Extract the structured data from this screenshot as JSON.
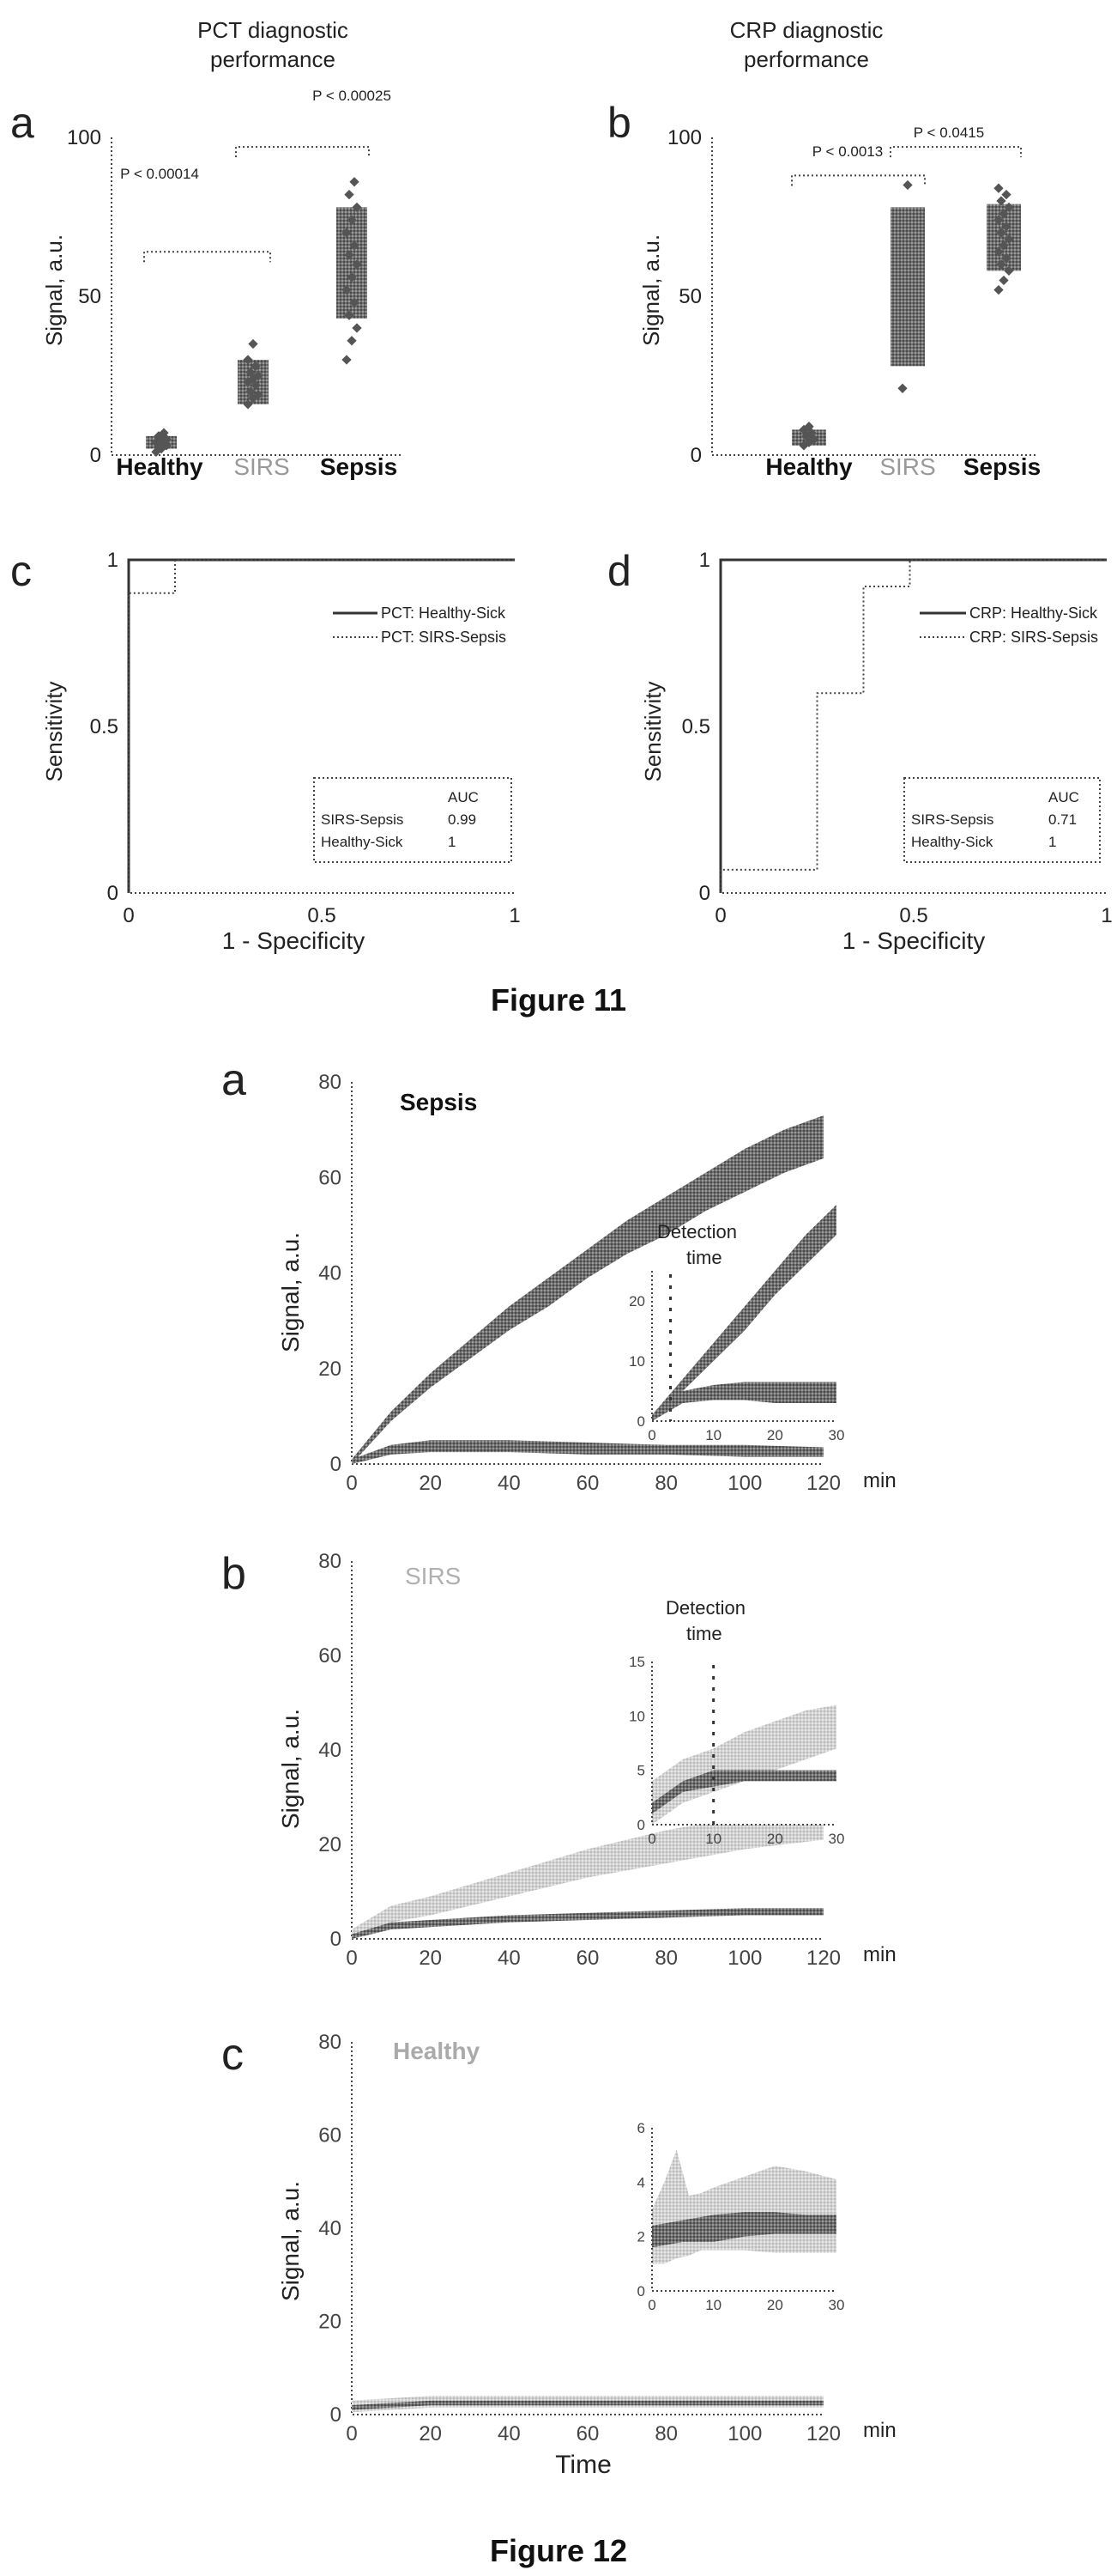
{
  "figure11": {
    "caption": "Figure 11",
    "box_panels": [
      {
        "letter": "a",
        "title_lines": [
          "PCT diagnostic",
          "performance"
        ],
        "ylabel": "Signal, a.u.",
        "categories": [
          "Healthy",
          "SIRS",
          "Sepsis"
        ],
        "brackets": [
          "P < 0.00014",
          "P < 0.00025"
        ]
      },
      {
        "letter": "b",
        "title_lines": [
          "CRP diagnostic",
          "performance"
        ],
        "ylabel": "Signal, a.u.",
        "categories": [
          "Healthy",
          "SIRS",
          "Sepsis"
        ],
        "brackets": [
          "P < 0.0013",
          "P < 0.0415"
        ]
      }
    ],
    "roc_panels": [
      {
        "letter": "c",
        "xlabel": "1 - Specificity",
        "ylabel": "Sensitivity",
        "legend": [
          "PCT: Healthy-Sick",
          "PCT: SIRS-Sepsis"
        ],
        "auc_header": "AUC",
        "auc_rows": [
          [
            "SIRS-Sepsis",
            "0.99"
          ],
          [
            "Healthy-Sick",
            "1"
          ]
        ]
      },
      {
        "letter": "d",
        "xlabel": "1 - Specificity",
        "ylabel": "Sensitivity",
        "legend": [
          "CRP: Healthy-Sick",
          "CRP: SIRS-Sepsis"
        ],
        "auc_header": "AUC",
        "auc_rows": [
          [
            "SIRS-Sepsis",
            "0.71"
          ],
          [
            "Healthy-Sick",
            "1"
          ]
        ]
      }
    ]
  },
  "figure12": {
    "caption": "Figure 12",
    "panels": [
      {
        "letter": "a",
        "label": "Sepsis",
        "ylabel": "Signal, a.u.",
        "xunit": "min",
        "inset_label_lines": [
          "Detection",
          "time"
        ]
      },
      {
        "letter": "b",
        "label": "SIRS",
        "ylabel": "Signal, a.u.",
        "xunit": "min",
        "inset_label_lines": [
          "Detection",
          "time"
        ]
      },
      {
        "letter": "c",
        "label": "Healthy",
        "ylabel": "Signal, a.u.",
        "xunit": "min",
        "inset_label_lines": []
      }
    ],
    "xlabel": "Time"
  },
  "colors": {
    "dark": "#555555",
    "mid": "#8a8a8a",
    "light": "#bdbdbd"
  },
  "chart_data": [
    {
      "type": "scatter",
      "title": "PCT diagnostic performance",
      "ylabel": "Signal, a.u.",
      "categories": [
        "Healthy",
        "SIRS",
        "Sepsis"
      ],
      "ylim": [
        0,
        100
      ],
      "yticks": [
        0,
        50,
        100
      ],
      "boxes": [
        {
          "category": "Healthy",
          "low": 2,
          "high": 6
        },
        {
          "category": "SIRS",
          "low": 16,
          "high": 30
        },
        {
          "category": "Sepsis",
          "low": 43,
          "high": 78
        }
      ],
      "points": [
        {
          "category": "Healthy",
          "values": [
            1,
            2,
            3,
            3,
            4,
            4,
            5,
            5,
            6,
            7
          ]
        },
        {
          "category": "SIRS",
          "values": [
            16,
            18,
            19,
            20,
            22,
            23,
            24,
            25,
            26,
            28,
            30,
            35
          ]
        },
        {
          "category": "Sepsis",
          "values": [
            30,
            36,
            40,
            44,
            48,
            52,
            56,
            60,
            63,
            66,
            70,
            74,
            78,
            82,
            86
          ]
        }
      ],
      "comparisons": [
        {
          "from": "Healthy",
          "to": "SIRS",
          "label": "P < 0.00014",
          "y": 64
        },
        {
          "from": "SIRS",
          "to": "Sepsis",
          "label": "P < 0.00025",
          "y": 97
        }
      ]
    },
    {
      "type": "scatter",
      "title": "CRP diagnostic performance",
      "ylabel": "Signal, a.u.",
      "categories": [
        "Healthy",
        "SIRS",
        "Sepsis"
      ],
      "ylim": [
        0,
        100
      ],
      "yticks": [
        0,
        50,
        100
      ],
      "boxes": [
        {
          "category": "Healthy",
          "low": 3,
          "high": 8
        },
        {
          "category": "SIRS",
          "low": 28,
          "high": 78
        },
        {
          "category": "Sepsis",
          "low": 58,
          "high": 79
        }
      ],
      "points": [
        {
          "category": "Healthy",
          "values": [
            3,
            4,
            5,
            6,
            7,
            8,
            9
          ]
        },
        {
          "category": "SIRS",
          "values": [
            21,
            85
          ]
        },
        {
          "category": "Sepsis",
          "values": [
            52,
            55,
            58,
            60,
            62,
            64,
            66,
            68,
            70,
            72,
            74,
            76,
            78,
            80,
            82,
            84
          ]
        }
      ],
      "comparisons": [
        {
          "from": "Healthy",
          "to": "SIRS",
          "label": "P < 0.0013",
          "y": 88
        },
        {
          "from": "SIRS",
          "to": "Sepsis",
          "label": "P < 0.0415",
          "y": 97
        }
      ]
    },
    {
      "type": "line",
      "xlabel": "1 - Specificity",
      "ylabel": "Sensitivity",
      "xlim": [
        0,
        1
      ],
      "ylim": [
        0,
        1
      ],
      "xticks": [
        0,
        0.5,
        1
      ],
      "yticks": [
        0,
        0.5,
        1
      ],
      "series": [
        {
          "name": "PCT: Healthy-Sick",
          "x": [
            0,
            0,
            1
          ],
          "y": [
            0,
            1,
            1
          ]
        },
        {
          "name": "PCT: SIRS-Sepsis",
          "x": [
            0,
            0,
            0.12,
            0.12,
            1
          ],
          "y": [
            0,
            0.9,
            0.9,
            1,
            1
          ]
        }
      ]
    },
    {
      "type": "line",
      "xlabel": "1 - Specificity",
      "ylabel": "Sensitivity",
      "xlim": [
        0,
        1
      ],
      "ylim": [
        0,
        1
      ],
      "xticks": [
        0,
        0.5,
        1
      ],
      "yticks": [
        0,
        0.5,
        1
      ],
      "series": [
        {
          "name": "CRP: Healthy-Sick",
          "x": [
            0,
            0,
            1
          ],
          "y": [
            0,
            1,
            1
          ]
        },
        {
          "name": "CRP: SIRS-Sepsis",
          "x": [
            0,
            0,
            0.25,
            0.25,
            0.37,
            0.37,
            0.49,
            0.49,
            1
          ],
          "y": [
            0,
            0.07,
            0.07,
            0.6,
            0.6,
            0.92,
            0.92,
            1,
            1
          ]
        }
      ]
    },
    {
      "type": "area",
      "label": "Sepsis",
      "ylabel": "Signal, a.u.",
      "xlim": [
        0,
        120
      ],
      "ylim": [
        0,
        80
      ],
      "xticks": [
        0,
        20,
        40,
        60,
        80,
        100,
        120
      ],
      "yticks": [
        0,
        20,
        40,
        60,
        80
      ],
      "series": [
        {
          "shade": "dark",
          "x": [
            0,
            10,
            20,
            30,
            40,
            50,
            60,
            70,
            80,
            90,
            100,
            110,
            120
          ],
          "lower": [
            0,
            9,
            16,
            22,
            28,
            33,
            39,
            44,
            48,
            53,
            57,
            61,
            64
          ],
          "upper": [
            1,
            11,
            19,
            26,
            33,
            39,
            45,
            51,
            56,
            61,
            66,
            70,
            73
          ]
        },
        {
          "shade": "dark",
          "x": [
            0,
            10,
            20,
            40,
            60,
            80,
            100,
            120
          ],
          "lower": [
            0,
            2,
            2.5,
            2.5,
            2,
            2,
            1.5,
            1.5
          ],
          "upper": [
            1,
            4,
            5,
            5,
            4.5,
            4,
            4,
            3.5
          ]
        }
      ],
      "inset": {
        "xlim": [
          0,
          30
        ],
        "ylim": [
          0,
          25
        ],
        "xticks": [
          0,
          10,
          20,
          30
        ],
        "yticks": [
          0,
          10,
          20
        ],
        "series": [
          {
            "shade": "dark",
            "x": [
              0,
              5,
              10,
              15,
              20,
              25,
              30
            ],
            "lower": [
              0,
              5,
              10,
              15,
              21,
              26,
              31
            ],
            "upper": [
              1,
              7,
              13,
              19,
              25,
              31,
              36
            ]
          },
          {
            "shade": "dark",
            "x": [
              0,
              5,
              10,
              15,
              20,
              25,
              30
            ],
            "lower": [
              0,
              3,
              3.5,
              3.5,
              3,
              3,
              3
            ],
            "upper": [
              1,
              5,
              6,
              6.5,
              6.5,
              6.5,
              6.5
            ]
          }
        ],
        "detection_time": 3
      }
    },
    {
      "type": "area",
      "label": "SIRS",
      "ylabel": "Signal, a.u.",
      "xlim": [
        0,
        120
      ],
      "ylim": [
        0,
        80
      ],
      "xticks": [
        0,
        20,
        40,
        60,
        80,
        100,
        120
      ],
      "yticks": [
        0,
        20,
        40,
        60,
        80
      ],
      "series": [
        {
          "shade": "light",
          "x": [
            0,
            10,
            20,
            40,
            60,
            80,
            100,
            120
          ],
          "lower": [
            0,
            3.5,
            5,
            9,
            13,
            16,
            19,
            21
          ],
          "upper": [
            2,
            7,
            9,
            14,
            19,
            23,
            26,
            29
          ]
        },
        {
          "shade": "dark",
          "x": [
            0,
            10,
            20,
            40,
            60,
            80,
            100,
            120
          ],
          "lower": [
            0,
            2,
            2.5,
            3.5,
            4,
            4.5,
            5,
            5
          ],
          "upper": [
            1,
            3.5,
            4,
            5,
            5.5,
            6,
            6.5,
            6.5
          ]
        }
      ],
      "inset": {
        "xlim": [
          0,
          30
        ],
        "ylim": [
          0,
          15
        ],
        "xticks": [
          0,
          10,
          20,
          30
        ],
        "yticks": [
          0,
          5,
          10,
          15
        ],
        "series": [
          {
            "shade": "light",
            "x": [
              0,
              5,
              10,
              15,
              20,
              25,
              30
            ],
            "lower": [
              0,
              2,
              3,
              4,
              5,
              6,
              7
            ],
            "upper": [
              4,
              6,
              7,
              8.5,
              9.5,
              10.5,
              11
            ]
          },
          {
            "shade": "dark",
            "x": [
              0,
              5,
              10,
              15,
              20,
              25,
              30
            ],
            "lower": [
              1,
              3,
              3.5,
              4,
              4,
              4,
              4
            ],
            "upper": [
              2,
              4,
              5,
              5,
              5,
              5,
              5
            ]
          }
        ],
        "detection_time": 10
      }
    },
    {
      "type": "area",
      "label": "Healthy",
      "ylabel": "Signal, a.u.",
      "xlabel": "Time",
      "xlim": [
        0,
        120
      ],
      "ylim": [
        0,
        80
      ],
      "xticks": [
        0,
        20,
        40,
        60,
        80,
        100,
        120
      ],
      "yticks": [
        0,
        20,
        40,
        60,
        80
      ],
      "series": [
        {
          "shade": "light",
          "x": [
            0,
            20,
            40,
            60,
            80,
            100,
            120
          ],
          "lower": [
            0.5,
            1.5,
            1.5,
            1.5,
            1.5,
            1.5,
            1.5
          ],
          "upper": [
            3,
            4,
            4,
            4,
            4,
            4,
            4
          ]
        },
        {
          "shade": "dark",
          "x": [
            0,
            20,
            40,
            60,
            80,
            100,
            120
          ],
          "lower": [
            1,
            2,
            2,
            2,
            2,
            2,
            2
          ],
          "upper": [
            2,
            3,
            3,
            3,
            3,
            3,
            3
          ]
        }
      ],
      "inset": {
        "xlim": [
          0,
          30
        ],
        "ylim": [
          0,
          6
        ],
        "xticks": [
          0,
          10,
          20,
          30
        ],
        "yticks": [
          0,
          2,
          4,
          6
        ],
        "series": [
          {
            "shade": "light",
            "x": [
              0,
              2,
              4,
              6,
              8,
              10,
              15,
              20,
              25,
              30
            ],
            "lower": [
              1,
              1,
              1.2,
              1.3,
              1.5,
              1.5,
              1.5,
              1.4,
              1.4,
              1.4
            ],
            "upper": [
              3,
              4,
              5.2,
              3.5,
              3.6,
              3.8,
              4.2,
              4.6,
              4.4,
              4.1
            ]
          },
          {
            "shade": "dark",
            "x": [
              0,
              5,
              10,
              15,
              20,
              25,
              30
            ],
            "lower": [
              1.6,
              1.8,
              1.8,
              2,
              2.1,
              2.1,
              2.1
            ],
            "upper": [
              2.4,
              2.6,
              2.8,
              2.9,
              2.9,
              2.8,
              2.8
            ]
          }
        ],
        "detection_time": null
      }
    }
  ]
}
